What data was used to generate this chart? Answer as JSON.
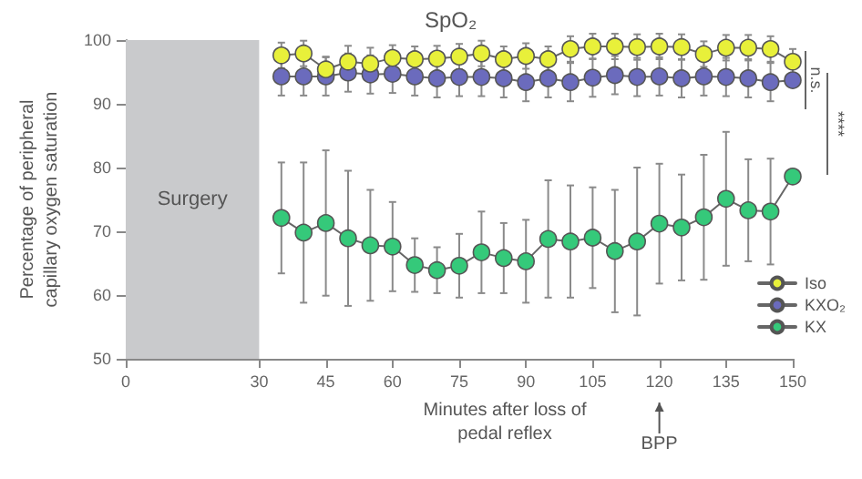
{
  "chart_data": {
    "type": "line",
    "title": "SpO₂",
    "xlabel": "Minutes after loss of\npedal reflex",
    "ylabel": "Percentage of peripheral\ncapillary oxygen saturation",
    "x": [
      35,
      40,
      45,
      50,
      55,
      60,
      65,
      70,
      75,
      80,
      85,
      90,
      95,
      100,
      105,
      110,
      115,
      120,
      125,
      130,
      135,
      140,
      145,
      150
    ],
    "series": [
      {
        "name": "Iso",
        "color": "#e8f03a",
        "values": [
          97.6,
          97.9,
          95.4,
          96.6,
          96.3,
          97.2,
          97.0,
          97.1,
          97.4,
          97.9,
          97.0,
          97.5,
          97.0,
          98.6,
          99.0,
          99.0,
          98.9,
          99.0,
          98.9,
          97.8,
          98.8,
          98.8,
          98.6,
          96.6
        ],
        "errors": [
          2,
          2,
          2,
          2.5,
          2.5,
          2,
          2,
          2,
          2,
          2,
          2,
          2,
          2,
          2,
          2,
          2,
          2,
          2,
          2,
          2,
          2,
          2,
          2,
          2
        ]
      },
      {
        "name": "KXO₂",
        "color": "#6b6bbd",
        "values": [
          94.3,
          94.3,
          94.3,
          94.9,
          94.6,
          94.7,
          94.3,
          94.0,
          94.2,
          94.2,
          94.0,
          93.4,
          94.0,
          93.4,
          94.1,
          94.5,
          94.2,
          94.3,
          94.0,
          94.3,
          94.2,
          94.0,
          93.4,
          93.7
        ],
        "errors": [
          3,
          3,
          3,
          3,
          3,
          3,
          3,
          3,
          3,
          3,
          3,
          3,
          3,
          3,
          3,
          3,
          3,
          3,
          3,
          3,
          3,
          3,
          3,
          1
        ]
      },
      {
        "name": "KX",
        "color": "#35c97a",
        "values": [
          72.1,
          69.8,
          71.3,
          68.9,
          67.8,
          67.6,
          64.7,
          63.9,
          64.6,
          66.7,
          65.8,
          65.3,
          68.8,
          68.4,
          69.0,
          66.9,
          68.4,
          71.2,
          70.6,
          72.2,
          75.1,
          73.3,
          73.1,
          78.6
        ],
        "errors": [
          8.7,
          11,
          11.4,
          10.6,
          8.7,
          7.0,
          4.2,
          3.6,
          5,
          6.4,
          5.5,
          6.5,
          9.2,
          8.8,
          7.9,
          9.6,
          11.6,
          9.4,
          8.3,
          9.8,
          10.5,
          8,
          8.3,
          null
        ]
      }
    ],
    "xlim": [
      0,
      150
    ],
    "xticks": [
      0,
      30,
      45,
      60,
      75,
      90,
      105,
      120,
      135,
      150
    ],
    "ylim": [
      50,
      100
    ],
    "yticks": [
      50,
      60,
      70,
      80,
      90,
      100
    ],
    "bands": [
      {
        "axis": "x",
        "from": 0,
        "to": 30,
        "label": "Surgery",
        "color": "#c9cacc"
      }
    ],
    "annotations": [
      "n.s.",
      "****",
      {
        "text": "BPP",
        "x": 120
      }
    ],
    "legend": "bottom right",
    "marker": "circle",
    "line_style": "solid",
    "grid": false
  }
}
